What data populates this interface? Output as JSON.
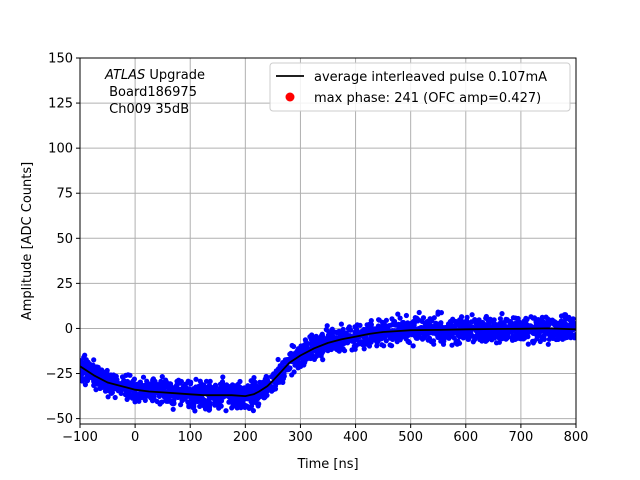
{
  "chart_data": {
    "type": "scatter",
    "title": "",
    "xlabel": "Time [ns]",
    "ylabel": "Amplitude [ADC Counts]",
    "xlim": [
      -100,
      800
    ],
    "ylim": [
      -53,
      150
    ],
    "xticks": [
      -100,
      0,
      100,
      200,
      300,
      400,
      500,
      600,
      700,
      800
    ],
    "yticks": [
      -50,
      -25,
      0,
      25,
      50,
      75,
      100,
      125,
      150
    ],
    "grid": true,
    "legend_position": "top-right",
    "annotation": {
      "prefix_italic": "ATLAS",
      "line1_rest": " Upgrade",
      "line2": " Board186975",
      "line3": " Ch009 35dB"
    },
    "series": [
      {
        "name": "average interleaved pulse 0.107mA",
        "kind": "line",
        "color": "#000000",
        "x": [
          -100,
          -75,
          -50,
          -25,
          0,
          25,
          50,
          75,
          100,
          125,
          150,
          175,
          200,
          215,
          225,
          240,
          250,
          265,
          280,
          300,
          325,
          350,
          375,
          400,
          425,
          450,
          475,
          500,
          550,
          600,
          650,
          700,
          750,
          800
        ],
        "y": [
          -21,
          -26,
          -30,
          -32,
          -34,
          -35,
          -35.5,
          -36,
          -36.5,
          -37,
          -37,
          -37,
          -37.5,
          -36.5,
          -35,
          -32,
          -29,
          -24,
          -19,
          -15,
          -11,
          -8,
          -6,
          -4.5,
          -3,
          -2,
          -1.5,
          -1,
          -0.8,
          -0.5,
          -0.3,
          -0.2,
          0,
          -0.5
        ]
      },
      {
        "name": "max phase: 241 (OFC amp=0.427)",
        "kind": "marker",
        "color": "#ff0000"
      }
    ],
    "scatter_cloud": {
      "color": "#0000ff",
      "spread": 3.5
    }
  }
}
